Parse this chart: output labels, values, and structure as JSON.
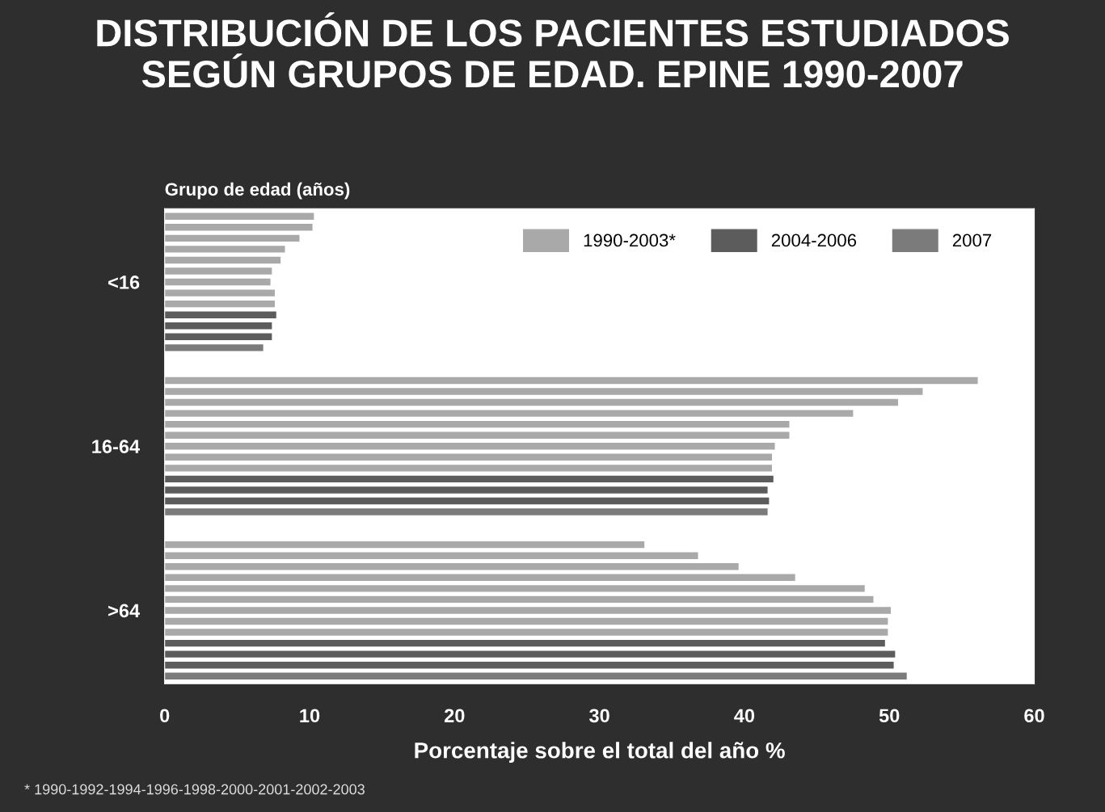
{
  "chart_data": {
    "type": "bar",
    "orientation": "horizontal",
    "title": "DISTRIBUCIÓN DE LOS PACIENTES ESTUDIADOS\nSEGÚN GRUPOS DE EDAD. EPINE 1990-2007",
    "xlabel": "Porcentaje sobre el total del año %",
    "ylabel": "Grupo de edad (años)",
    "annotations": [
      "* 1990-1992-1994-1996-1998-2000-2001-2002-2003"
    ],
    "categories": [
      null,
      null,
      null,
      null,
      null,
      null,
      "<16",
      null,
      null,
      null,
      null,
      null,
      null,
      null,
      null,
      null,
      null,
      null,
      null,
      null,
      null,
      "16-64",
      null,
      null,
      null,
      null,
      null,
      null,
      null,
      null,
      null,
      null,
      null,
      null,
      null,
      null,
      ">64",
      null,
      null,
      null,
      null,
      null,
      null
    ],
    "series": [
      {
        "name": "1990-2003*",
        "color": "#a9a9a9",
        "values": [
          10.3,
          10.2,
          9.3,
          8.3,
          8.0,
          7.4,
          7.3,
          7.6,
          7.6,
          null,
          null,
          null,
          null,
          null,
          null,
          56.1,
          52.3,
          50.6,
          47.5,
          43.1,
          43.1,
          42.1,
          41.9,
          41.9,
          null,
          null,
          null,
          null,
          null,
          null,
          33.1,
          36.8,
          39.6,
          43.5,
          48.3,
          48.9,
          50.1,
          49.9,
          49.9,
          null,
          null,
          null,
          null
        ]
      },
      {
        "name": "2004-2006",
        "color": "#5c5c5c",
        "values": [
          null,
          null,
          null,
          null,
          null,
          null,
          null,
          null,
          null,
          7.7,
          7.4,
          7.4,
          null,
          null,
          null,
          null,
          null,
          null,
          null,
          null,
          null,
          null,
          null,
          null,
          42.0,
          41.6,
          41.7,
          null,
          null,
          null,
          null,
          null,
          null,
          null,
          null,
          null,
          null,
          null,
          null,
          49.7,
          50.4,
          50.3,
          null
        ]
      },
      {
        "name": "2007",
        "color": "#7b7b7b",
        "values": [
          null,
          null,
          null,
          null,
          null,
          null,
          null,
          null,
          null,
          null,
          null,
          null,
          6.8,
          null,
          null,
          null,
          null,
          null,
          null,
          null,
          null,
          null,
          null,
          null,
          null,
          null,
          null,
          41.6,
          null,
          null,
          null,
          null,
          null,
          null,
          null,
          null,
          null,
          null,
          null,
          null,
          null,
          null,
          51.2
        ]
      }
    ],
    "xlim": [
      0,
      60
    ],
    "xticks": [
      0,
      10,
      20,
      30,
      40,
      50,
      60
    ],
    "grid": false,
    "legend": "top right"
  }
}
